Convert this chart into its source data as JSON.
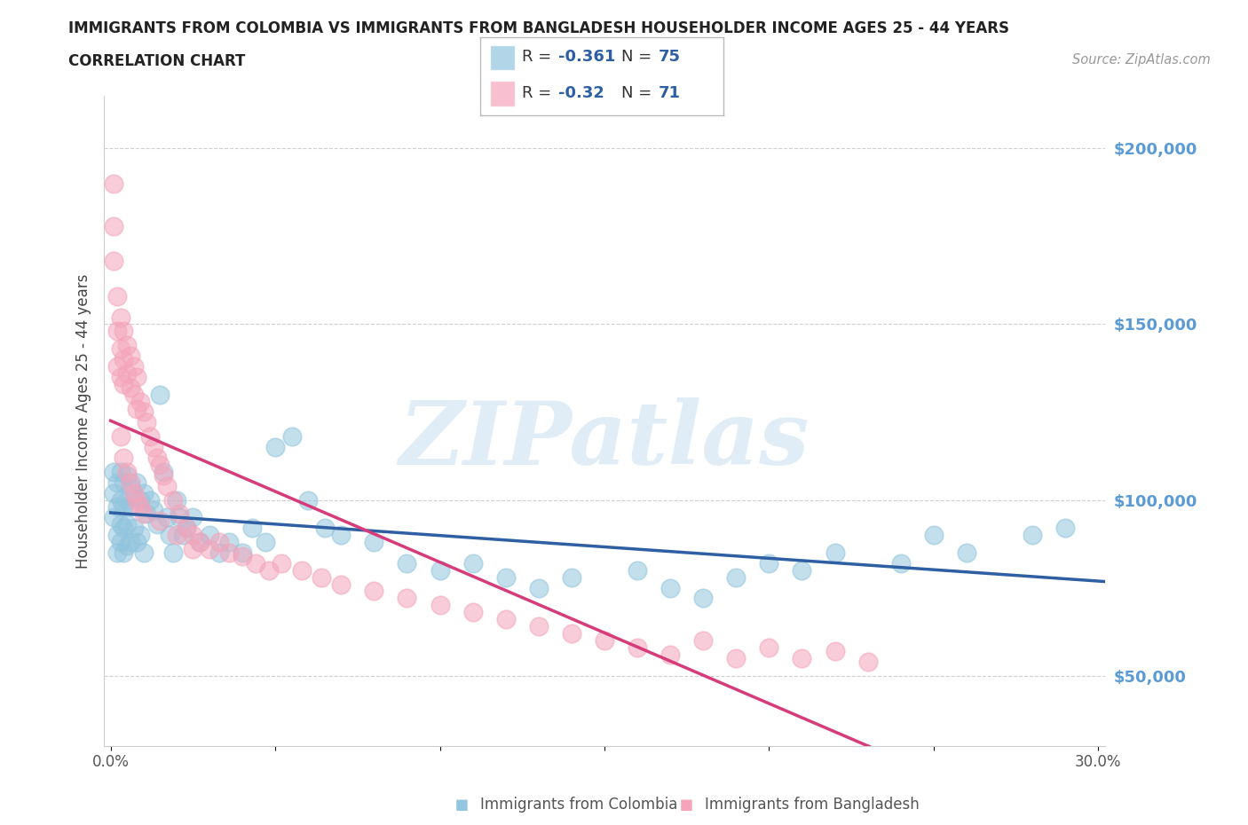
{
  "title": "IMMIGRANTS FROM COLOMBIA VS IMMIGRANTS FROM BANGLADESH HOUSEHOLDER INCOME AGES 25 - 44 YEARS",
  "subtitle": "CORRELATION CHART",
  "source": "Source: ZipAtlas.com",
  "ylabel": "Householder Income Ages 25 - 44 years",
  "xlim": [
    -0.002,
    0.302
  ],
  "ylim": [
    30000,
    215000
  ],
  "yticks": [
    50000,
    100000,
    150000,
    200000
  ],
  "ytick_labels": [
    "$50,000",
    "$100,000",
    "$150,000",
    "$200,000"
  ],
  "xticks": [
    0.0,
    0.05,
    0.1,
    0.15,
    0.2,
    0.25,
    0.3
  ],
  "xtick_labels": [
    "0.0%",
    "",
    "",
    "",
    "",
    "",
    "30.0%"
  ],
  "colombia_color": "#92c5de",
  "bangladesh_color": "#f4a4bb",
  "colombia_R": -0.361,
  "colombia_N": 75,
  "bangladesh_R": -0.32,
  "bangladesh_N": 71,
  "colombia_x": [
    0.001,
    0.001,
    0.001,
    0.002,
    0.002,
    0.002,
    0.002,
    0.003,
    0.003,
    0.003,
    0.003,
    0.004,
    0.004,
    0.004,
    0.004,
    0.005,
    0.005,
    0.005,
    0.005,
    0.006,
    0.006,
    0.006,
    0.007,
    0.007,
    0.008,
    0.008,
    0.009,
    0.009,
    0.01,
    0.01,
    0.011,
    0.012,
    0.013,
    0.014,
    0.015,
    0.016,
    0.017,
    0.018,
    0.019,
    0.02,
    0.021,
    0.022,
    0.023,
    0.025,
    0.027,
    0.03,
    0.033,
    0.036,
    0.04,
    0.043,
    0.047,
    0.05,
    0.055,
    0.06,
    0.065,
    0.07,
    0.08,
    0.09,
    0.1,
    0.11,
    0.12,
    0.13,
    0.14,
    0.16,
    0.17,
    0.18,
    0.19,
    0.2,
    0.21,
    0.22,
    0.24,
    0.25,
    0.26,
    0.28,
    0.29
  ],
  "colombia_y": [
    108000,
    102000,
    95000,
    105000,
    98000,
    90000,
    85000,
    108000,
    100000,
    93000,
    88000,
    105000,
    98000,
    92000,
    85000,
    107000,
    100000,
    93000,
    87000,
    104000,
    98000,
    88000,
    101000,
    92000,
    105000,
    88000,
    100000,
    90000,
    102000,
    85000,
    96000,
    100000,
    97000,
    93000,
    130000,
    108000,
    95000,
    90000,
    85000,
    100000,
    95000,
    90000,
    92000,
    95000,
    88000,
    90000,
    85000,
    88000,
    85000,
    92000,
    88000,
    115000,
    118000,
    100000,
    92000,
    90000,
    88000,
    82000,
    80000,
    82000,
    78000,
    75000,
    78000,
    80000,
    75000,
    72000,
    78000,
    82000,
    80000,
    85000,
    82000,
    90000,
    85000,
    90000,
    92000
  ],
  "bangladesh_x": [
    0.001,
    0.001,
    0.001,
    0.002,
    0.002,
    0.002,
    0.003,
    0.003,
    0.003,
    0.004,
    0.004,
    0.004,
    0.005,
    0.005,
    0.006,
    0.006,
    0.007,
    0.007,
    0.008,
    0.008,
    0.009,
    0.01,
    0.011,
    0.012,
    0.013,
    0.014,
    0.015,
    0.016,
    0.017,
    0.019,
    0.021,
    0.023,
    0.025,
    0.027,
    0.03,
    0.033,
    0.036,
    0.04,
    0.044,
    0.048,
    0.052,
    0.058,
    0.064,
    0.07,
    0.08,
    0.09,
    0.1,
    0.11,
    0.12,
    0.13,
    0.14,
    0.15,
    0.16,
    0.17,
    0.18,
    0.19,
    0.2,
    0.21,
    0.22,
    0.23,
    0.003,
    0.004,
    0.005,
    0.006,
    0.007,
    0.008,
    0.009,
    0.01,
    0.015,
    0.02,
    0.025
  ],
  "bangladesh_y": [
    190000,
    178000,
    168000,
    158000,
    148000,
    138000,
    152000,
    143000,
    135000,
    148000,
    140000,
    133000,
    144000,
    136000,
    141000,
    132000,
    138000,
    130000,
    135000,
    126000,
    128000,
    125000,
    122000,
    118000,
    115000,
    112000,
    110000,
    107000,
    104000,
    100000,
    96000,
    92000,
    90000,
    88000,
    86000,
    88000,
    85000,
    84000,
    82000,
    80000,
    82000,
    80000,
    78000,
    76000,
    74000,
    72000,
    70000,
    68000,
    66000,
    64000,
    62000,
    60000,
    58000,
    56000,
    60000,
    55000,
    58000,
    55000,
    57000,
    54000,
    118000,
    112000,
    108000,
    105000,
    102000,
    100000,
    98000,
    96000,
    94000,
    90000,
    86000
  ],
  "watermark": "ZIPatlas",
  "background_color": "#ffffff",
  "grid_color": "#d0d0d0",
  "colombia_line_color": "#2e5fa3",
  "bangladesh_line_color": "#d63b7a",
  "right_tick_color": "#5b9bd5"
}
